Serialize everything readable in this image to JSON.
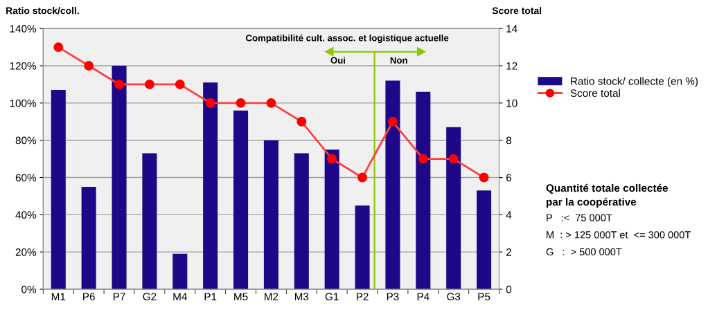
{
  "chart_data": {
    "type": "bar",
    "categories": [
      "M1",
      "P6",
      "P7",
      "G2",
      "M4",
      "P1",
      "M5",
      "M2",
      "M3",
      "G1",
      "P2",
      "P3",
      "P4",
      "G3",
      "P5"
    ],
    "series": [
      {
        "name": "Ratio stock/ collecte (en %)",
        "color": "#1e0888",
        "values": [
          107,
          55,
          120,
          73,
          19,
          111,
          96,
          80,
          73,
          75,
          45,
          112,
          106,
          87,
          53
        ]
      },
      {
        "name": "Score total",
        "type": "line",
        "axis": "y2",
        "color": "#ff4040",
        "marker": "circle",
        "values": [
          13,
          12,
          11,
          11,
          11,
          10,
          10,
          10,
          9,
          7,
          6,
          9,
          7,
          7,
          6
        ]
      }
    ],
    "ylabel": "Ratio stock/coll.",
    "y2label": "Score total",
    "ylim": [
      0,
      140
    ],
    "yticks": [
      {
        "value": 0,
        "label": "0%"
      },
      {
        "value": 20,
        "label": "20%"
      },
      {
        "value": 40,
        "label": "40%"
      },
      {
        "value": 60,
        "label": "60%"
      },
      {
        "value": 80,
        "label": "80%"
      },
      {
        "value": 100,
        "label": "100%"
      },
      {
        "value": 120,
        "label": "120%"
      },
      {
        "value": 140,
        "label": "140%"
      }
    ],
    "y2lim": [
      0,
      14
    ],
    "y2ticks": [
      0,
      2,
      4,
      6,
      8,
      10,
      12,
      14
    ],
    "grid": "y",
    "legend": "right",
    "annotations": [
      "Compatibilité cult. assoc. et logistique actuelle",
      "Oui",
      "Non",
      "Quantité totale collectée\npar la coopérative",
      "P   :<  75 000T",
      "M  : > 125 000T et  <= 300 000T",
      "G   :  > 500 000T"
    ]
  }
}
